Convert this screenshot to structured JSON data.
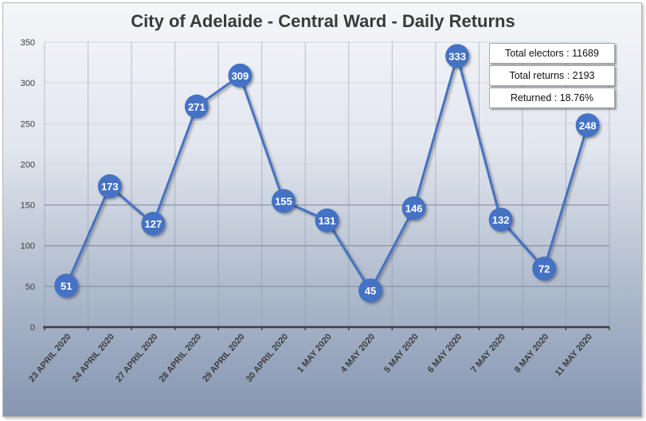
{
  "chart_data": {
    "type": "line",
    "title": "City of Adelaide - Central Ward - Daily Returns",
    "xlabel": "",
    "ylabel": "",
    "ylim": [
      0,
      350
    ],
    "yticks": [
      0,
      50,
      100,
      150,
      200,
      250,
      300,
      350
    ],
    "grid": true,
    "legend": "none",
    "categories": [
      "23 APRIL 2020",
      "24 APRIL 2020",
      "27 APRIL 2020",
      "28 APRIL 2020",
      "29 APRIL 2020",
      "30 APRIL 2020",
      "1 MAY 2020",
      "4 MAY 2020",
      "5 MAY 2020",
      "6 MAY 2020",
      "7 MAY 2020",
      "8 MAY 2020",
      "11 MAY 2020"
    ],
    "series": [
      {
        "name": "Daily Returns",
        "color": "#4472c4",
        "values": [
          51,
          173,
          127,
          271,
          309,
          155,
          131,
          45,
          146,
          333,
          132,
          72,
          248
        ]
      }
    ],
    "annotations": [
      "Total electors : 11689",
      "Total returns : 2193",
      "Returned : 18.76%"
    ]
  },
  "stats": {
    "electors": "Total electors : 11689",
    "returns": "Total returns : 2193",
    "returned": "Returned : 18.76%"
  },
  "colors": {
    "line": "#4472c4",
    "marker": "#4472c4",
    "marker_text": "#ffffff"
  }
}
